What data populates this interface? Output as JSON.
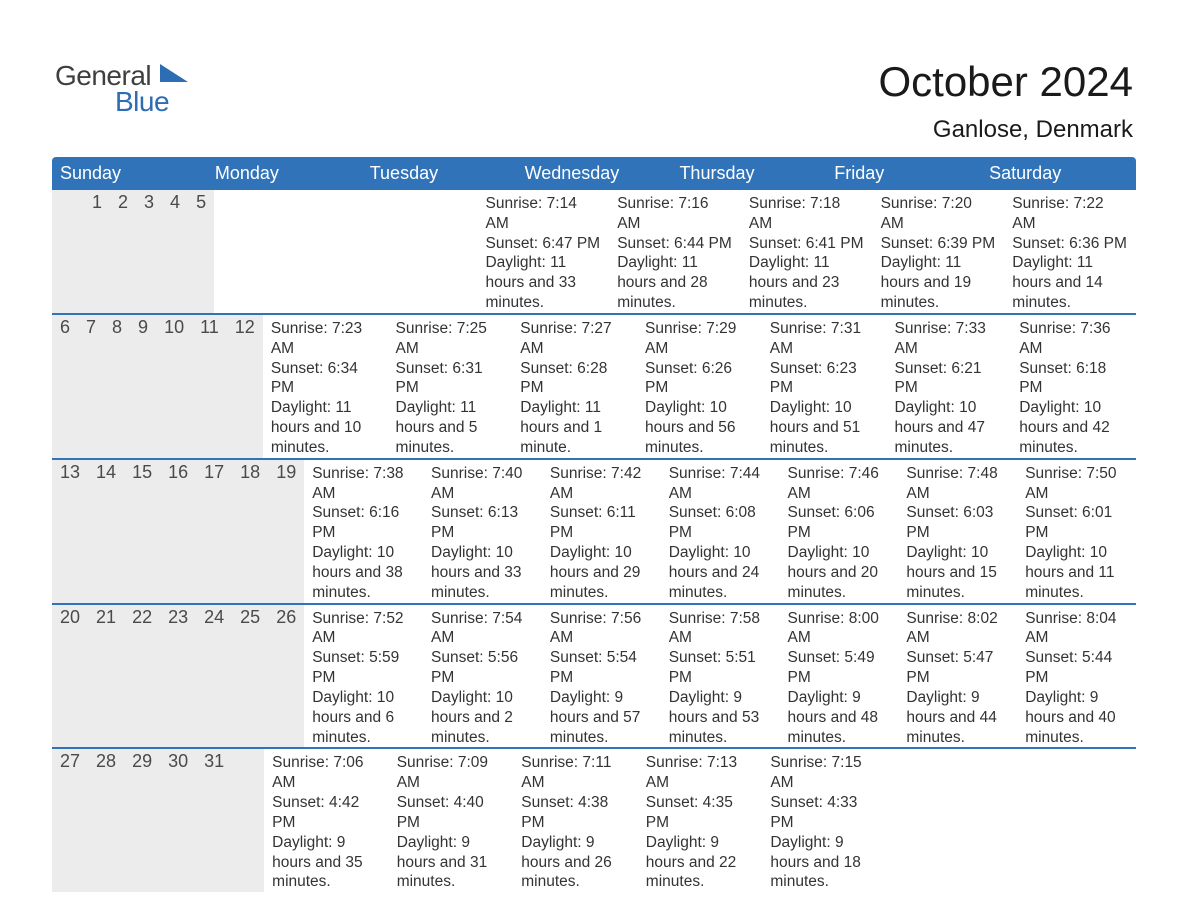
{
  "logo": {
    "line1": "General",
    "line2": "Blue"
  },
  "header": {
    "title": "October 2024",
    "location": "Ganlose, Denmark"
  },
  "style": {
    "header_bg": "#3173b9",
    "header_text": "#ffffff",
    "daynum_bg": "#ececec",
    "divider": "#3173b9",
    "body_text": "#333333",
    "title_fontsize": 42,
    "location_fontsize": 24,
    "dayhead_fontsize": 18,
    "cell_fontsize": 15.5,
    "page_bg": "#ffffff",
    "logo_gray": "#3f3f3f",
    "logo_blue": "#2d6db3"
  },
  "day_headers": [
    "Sunday",
    "Monday",
    "Tuesday",
    "Wednesday",
    "Thursday",
    "Friday",
    "Saturday"
  ],
  "weeks": [
    [
      {
        "n": "",
        "sr": "",
        "ss": "",
        "dl": ""
      },
      {
        "n": "",
        "sr": "",
        "ss": "",
        "dl": ""
      },
      {
        "n": "1",
        "sr": "Sunrise: 7:14 AM",
        "ss": "Sunset: 6:47 PM",
        "dl": "Daylight: 11 hours and 33 minutes."
      },
      {
        "n": "2",
        "sr": "Sunrise: 7:16 AM",
        "ss": "Sunset: 6:44 PM",
        "dl": "Daylight: 11 hours and 28 minutes."
      },
      {
        "n": "3",
        "sr": "Sunrise: 7:18 AM",
        "ss": "Sunset: 6:41 PM",
        "dl": "Daylight: 11 hours and 23 minutes."
      },
      {
        "n": "4",
        "sr": "Sunrise: 7:20 AM",
        "ss": "Sunset: 6:39 PM",
        "dl": "Daylight: 11 hours and 19 minutes."
      },
      {
        "n": "5",
        "sr": "Sunrise: 7:22 AM",
        "ss": "Sunset: 6:36 PM",
        "dl": "Daylight: 11 hours and 14 minutes."
      }
    ],
    [
      {
        "n": "6",
        "sr": "Sunrise: 7:23 AM",
        "ss": "Sunset: 6:34 PM",
        "dl": "Daylight: 11 hours and 10 minutes."
      },
      {
        "n": "7",
        "sr": "Sunrise: 7:25 AM",
        "ss": "Sunset: 6:31 PM",
        "dl": "Daylight: 11 hours and 5 minutes."
      },
      {
        "n": "8",
        "sr": "Sunrise: 7:27 AM",
        "ss": "Sunset: 6:28 PM",
        "dl": "Daylight: 11 hours and 1 minute."
      },
      {
        "n": "9",
        "sr": "Sunrise: 7:29 AM",
        "ss": "Sunset: 6:26 PM",
        "dl": "Daylight: 10 hours and 56 minutes."
      },
      {
        "n": "10",
        "sr": "Sunrise: 7:31 AM",
        "ss": "Sunset: 6:23 PM",
        "dl": "Daylight: 10 hours and 51 minutes."
      },
      {
        "n": "11",
        "sr": "Sunrise: 7:33 AM",
        "ss": "Sunset: 6:21 PM",
        "dl": "Daylight: 10 hours and 47 minutes."
      },
      {
        "n": "12",
        "sr": "Sunrise: 7:36 AM",
        "ss": "Sunset: 6:18 PM",
        "dl": "Daylight: 10 hours and 42 minutes."
      }
    ],
    [
      {
        "n": "13",
        "sr": "Sunrise: 7:38 AM",
        "ss": "Sunset: 6:16 PM",
        "dl": "Daylight: 10 hours and 38 minutes."
      },
      {
        "n": "14",
        "sr": "Sunrise: 7:40 AM",
        "ss": "Sunset: 6:13 PM",
        "dl": "Daylight: 10 hours and 33 minutes."
      },
      {
        "n": "15",
        "sr": "Sunrise: 7:42 AM",
        "ss": "Sunset: 6:11 PM",
        "dl": "Daylight: 10 hours and 29 minutes."
      },
      {
        "n": "16",
        "sr": "Sunrise: 7:44 AM",
        "ss": "Sunset: 6:08 PM",
        "dl": "Daylight: 10 hours and 24 minutes."
      },
      {
        "n": "17",
        "sr": "Sunrise: 7:46 AM",
        "ss": "Sunset: 6:06 PM",
        "dl": "Daylight: 10 hours and 20 minutes."
      },
      {
        "n": "18",
        "sr": "Sunrise: 7:48 AM",
        "ss": "Sunset: 6:03 PM",
        "dl": "Daylight: 10 hours and 15 minutes."
      },
      {
        "n": "19",
        "sr": "Sunrise: 7:50 AM",
        "ss": "Sunset: 6:01 PM",
        "dl": "Daylight: 10 hours and 11 minutes."
      }
    ],
    [
      {
        "n": "20",
        "sr": "Sunrise: 7:52 AM",
        "ss": "Sunset: 5:59 PM",
        "dl": "Daylight: 10 hours and 6 minutes."
      },
      {
        "n": "21",
        "sr": "Sunrise: 7:54 AM",
        "ss": "Sunset: 5:56 PM",
        "dl": "Daylight: 10 hours and 2 minutes."
      },
      {
        "n": "22",
        "sr": "Sunrise: 7:56 AM",
        "ss": "Sunset: 5:54 PM",
        "dl": "Daylight: 9 hours and 57 minutes."
      },
      {
        "n": "23",
        "sr": "Sunrise: 7:58 AM",
        "ss": "Sunset: 5:51 PM",
        "dl": "Daylight: 9 hours and 53 minutes."
      },
      {
        "n": "24",
        "sr": "Sunrise: 8:00 AM",
        "ss": "Sunset: 5:49 PM",
        "dl": "Daylight: 9 hours and 48 minutes."
      },
      {
        "n": "25",
        "sr": "Sunrise: 8:02 AM",
        "ss": "Sunset: 5:47 PM",
        "dl": "Daylight: 9 hours and 44 minutes."
      },
      {
        "n": "26",
        "sr": "Sunrise: 8:04 AM",
        "ss": "Sunset: 5:44 PM",
        "dl": "Daylight: 9 hours and 40 minutes."
      }
    ],
    [
      {
        "n": "27",
        "sr": "Sunrise: 7:06 AM",
        "ss": "Sunset: 4:42 PM",
        "dl": "Daylight: 9 hours and 35 minutes."
      },
      {
        "n": "28",
        "sr": "Sunrise: 7:09 AM",
        "ss": "Sunset: 4:40 PM",
        "dl": "Daylight: 9 hours and 31 minutes."
      },
      {
        "n": "29",
        "sr": "Sunrise: 7:11 AM",
        "ss": "Sunset: 4:38 PM",
        "dl": "Daylight: 9 hours and 26 minutes."
      },
      {
        "n": "30",
        "sr": "Sunrise: 7:13 AM",
        "ss": "Sunset: 4:35 PM",
        "dl": "Daylight: 9 hours and 22 minutes."
      },
      {
        "n": "31",
        "sr": "Sunrise: 7:15 AM",
        "ss": "Sunset: 4:33 PM",
        "dl": "Daylight: 9 hours and 18 minutes."
      },
      {
        "n": "",
        "sr": "",
        "ss": "",
        "dl": ""
      },
      {
        "n": "",
        "sr": "",
        "ss": "",
        "dl": ""
      }
    ]
  ]
}
